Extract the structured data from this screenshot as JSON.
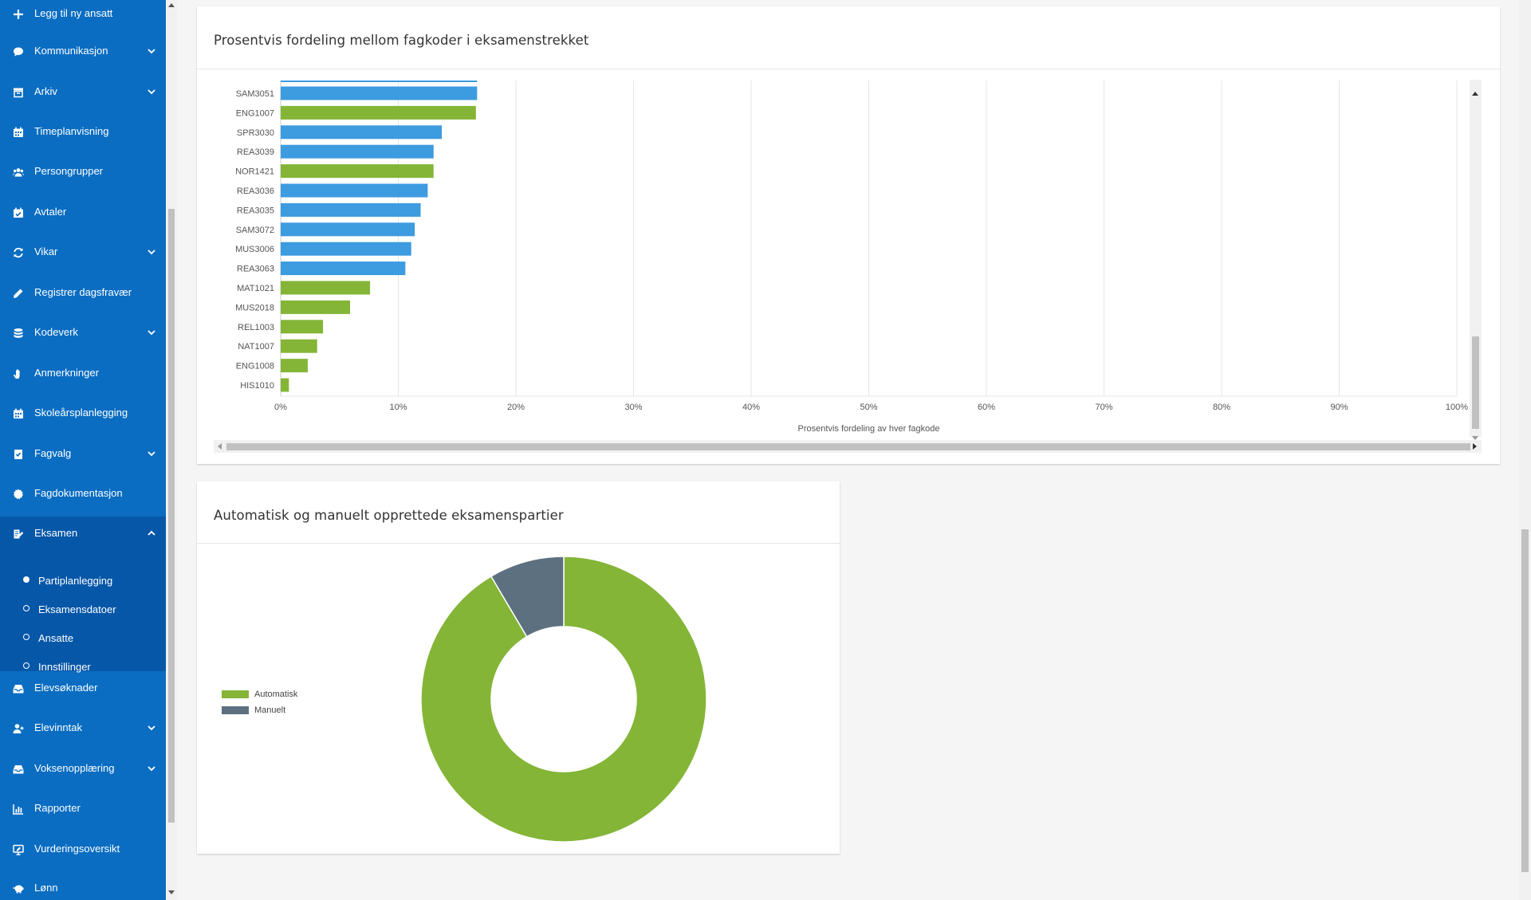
{
  "sidebar": {
    "items": [
      {
        "label": "Legg til ny ansatt",
        "icon": "plus-icon",
        "chevron": false
      },
      {
        "label": "Kommunikasjon",
        "icon": "chat-bubble-icon",
        "chevron": true
      },
      {
        "label": "Arkiv",
        "icon": "archive-box-icon",
        "chevron": true
      },
      {
        "label": "Timeplanvisning",
        "icon": "calendar-grid-icon",
        "chevron": false
      },
      {
        "label": "Persongrupper",
        "icon": "users-icon",
        "chevron": false
      },
      {
        "label": "Avtaler",
        "icon": "calendar-check-icon",
        "chevron": false
      },
      {
        "label": "Vikar",
        "icon": "sync-arrows-icon",
        "chevron": true
      },
      {
        "label": "Registrer dagsfravær",
        "icon": "pencil-icon",
        "chevron": false
      },
      {
        "label": "Kodeverk",
        "icon": "database-icon",
        "chevron": true
      },
      {
        "label": "Anmerkninger",
        "icon": "hand-icon",
        "chevron": false
      },
      {
        "label": "Skoleårsplanlegging",
        "icon": "calendar-grid-icon",
        "chevron": false
      },
      {
        "label": "Fagvalg",
        "icon": "book-check-icon",
        "chevron": true
      },
      {
        "label": "Fagdokumentasjon",
        "icon": "certificate-icon",
        "chevron": false
      },
      {
        "label": "Eksamen",
        "icon": "exam-edit-icon",
        "chevron": true,
        "expanded": true
      }
    ],
    "exam_subitems": [
      {
        "label": "Partiplanlegging",
        "active": true
      },
      {
        "label": "Eksamensdatoer",
        "active": false
      },
      {
        "label": "Ansatte",
        "active": false
      },
      {
        "label": "Innstillinger",
        "active": false
      }
    ],
    "items_after": [
      {
        "label": "Elevsøknader",
        "icon": "inbox-icon",
        "chevron": false
      },
      {
        "label": "Elevinntak",
        "icon": "user-plus-icon",
        "chevron": true
      },
      {
        "label": "Voksenopplæring",
        "icon": "inbox-icon",
        "chevron": true
      },
      {
        "label": "Rapporter",
        "icon": "bar-chart-icon",
        "chevron": false
      },
      {
        "label": "Vurderingsoversikt",
        "icon": "monitor-edit-icon",
        "chevron": false
      },
      {
        "label": "Lønn",
        "icon": "piggy-bank-icon",
        "chevron": false
      }
    ],
    "colors": {
      "background": "#0a6dc2",
      "active_group": "#0657a8"
    }
  },
  "bar_card": {
    "title": "Prosentvis fordeling mellom fagkoder i eksamenstrekket"
  },
  "donut_card": {
    "title": "Automatisk og manuelt opprettede eksamenspartier"
  },
  "chart_data": [
    {
      "type": "bar",
      "orientation": "horizontal",
      "title": "",
      "xlabel": "Prosentvis fordeling av hver fagkode",
      "ylabel": "",
      "xlim": [
        0,
        100
      ],
      "x_ticks": [
        "0%",
        "10%",
        "20%",
        "30%",
        "40%",
        "50%",
        "60%",
        "70%",
        "80%",
        "90%",
        "100%"
      ],
      "grid": true,
      "categories": [
        "SAM3051",
        "ENG1007",
        "SPR3030",
        "REA3039",
        "NOR1421",
        "REA3036",
        "REA3035",
        "SAM3072",
        "MUS3006",
        "REA3063",
        "MAT1021",
        "MUS2018",
        "REL1003",
        "NAT1007",
        "ENG1008",
        "HIS1010"
      ],
      "values": [
        16.7,
        16.6,
        13.7,
        13.0,
        13.0,
        12.5,
        11.9,
        11.4,
        11.1,
        10.6,
        7.6,
        5.9,
        3.6,
        3.1,
        2.3,
        0.7
      ],
      "bar_colors": [
        "#3d9be0",
        "#84b537",
        "#3d9be0",
        "#3d9be0",
        "#84b537",
        "#3d9be0",
        "#3d9be0",
        "#3d9be0",
        "#3d9be0",
        "#3d9be0",
        "#84b537",
        "#84b537",
        "#84b537",
        "#84b537",
        "#84b537",
        "#84b537"
      ],
      "top_partial_bar_value": 16.7
    },
    {
      "type": "pie",
      "variant": "donut",
      "title": "",
      "labels": [
        "Automatisk",
        "Manuelt"
      ],
      "values": [
        91.5,
        8.5
      ],
      "colors": [
        "#84b537",
        "#5c7080"
      ],
      "legend": "left"
    }
  ]
}
